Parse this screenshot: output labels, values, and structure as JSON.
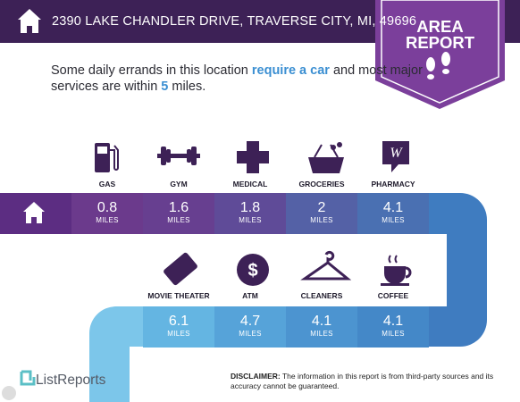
{
  "header": {
    "address": "2390 LAKE CHANDLER DRIVE, TRAVERSE CITY, MI, 49696"
  },
  "badge": {
    "line1": "AREA",
    "line2": "REPORT"
  },
  "intro": {
    "part1": "Some daily errands in this location ",
    "highlight1": "require a car",
    "part2": " and most major services are within ",
    "highlight2": "5",
    "part3": " miles."
  },
  "rows": [
    [
      {
        "label": "GAS",
        "distance": "0.8",
        "unit": "MILES"
      },
      {
        "label": "GYM",
        "distance": "1.6",
        "unit": "MILES"
      },
      {
        "label": "MEDICAL",
        "distance": "1.8",
        "unit": "MILES"
      },
      {
        "label": "GROCERIES",
        "distance": "2",
        "unit": "MILES"
      },
      {
        "label": "PHARMACY",
        "distance": "4.1",
        "unit": "MILES"
      }
    ],
    [
      {
        "label": "MOVIE THEATER",
        "distance": "6.1",
        "unit": "MILES"
      },
      {
        "label": "ATM",
        "distance": "4.7",
        "unit": "MILES"
      },
      {
        "label": "CLEANERS",
        "distance": "4.1",
        "unit": "MILES"
      },
      {
        "label": "COFFEE",
        "distance": "4.1",
        "unit": "MILES"
      }
    ]
  ],
  "footer": {
    "brand": "ListReports",
    "disclaimer_label": "DISCLAIMER:",
    "disclaimer": " The information in this report is from third-party sources and its accuracy cannot be guaranteed."
  }
}
